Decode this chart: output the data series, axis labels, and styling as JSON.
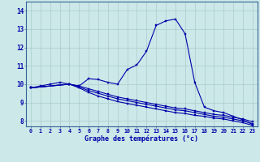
{
  "xlabel": "Graphe des températures (°c)",
  "background_color": "#cce8e8",
  "grid_color": "#aacccc",
  "line_color": "#0000aa",
  "spine_color": "#336699",
  "xlim": [
    -0.5,
    23.5
  ],
  "ylim": [
    7.7,
    14.5
  ],
  "yticks": [
    8,
    9,
    10,
    11,
    12,
    13,
    14
  ],
  "xticks": [
    0,
    1,
    2,
    3,
    4,
    5,
    6,
    7,
    8,
    9,
    10,
    11,
    12,
    13,
    14,
    15,
    16,
    17,
    18,
    19,
    20,
    21,
    22,
    23
  ],
  "line1_x": [
    0,
    1,
    2,
    3,
    4,
    5,
    6,
    7,
    8,
    9,
    10,
    11,
    12,
    13,
    14,
    15,
    16,
    17,
    18,
    19,
    20,
    21,
    22,
    23
  ],
  "line1_y": [
    9.8,
    9.9,
    10.0,
    10.1,
    10.0,
    9.9,
    10.3,
    10.25,
    10.1,
    10.0,
    10.8,
    11.05,
    11.8,
    13.2,
    13.45,
    13.55,
    12.75,
    10.1,
    8.75,
    8.55,
    8.45,
    8.25,
    8.05,
    7.8
  ],
  "line2_x": [
    0,
    4,
    5,
    6,
    7,
    8,
    9,
    10,
    11,
    12,
    13,
    14,
    15,
    16,
    17,
    18,
    19,
    20,
    21,
    22,
    23
  ],
  "line2_y": [
    9.8,
    10.0,
    9.9,
    9.75,
    9.6,
    9.45,
    9.3,
    9.2,
    9.1,
    9.0,
    8.9,
    8.8,
    8.7,
    8.65,
    8.55,
    8.45,
    8.35,
    8.3,
    8.2,
    8.1,
    7.95
  ],
  "line3_x": [
    0,
    4,
    5,
    6,
    7,
    8,
    9,
    10,
    11,
    12,
    13,
    14,
    15,
    16,
    17,
    18,
    19,
    20,
    21,
    22,
    23
  ],
  "line3_y": [
    9.8,
    10.0,
    9.85,
    9.65,
    9.5,
    9.35,
    9.2,
    9.1,
    9.0,
    8.9,
    8.8,
    8.7,
    8.6,
    8.55,
    8.45,
    8.35,
    8.25,
    8.2,
    8.1,
    8.0,
    7.85
  ],
  "line4_x": [
    0,
    4,
    5,
    6,
    7,
    8,
    9,
    10,
    11,
    12,
    13,
    14,
    15,
    16,
    17,
    18,
    19,
    20,
    21,
    22,
    23
  ],
  "line4_y": [
    9.8,
    10.0,
    9.8,
    9.55,
    9.35,
    9.2,
    9.05,
    8.95,
    8.85,
    8.75,
    8.65,
    8.55,
    8.45,
    8.4,
    8.3,
    8.25,
    8.15,
    8.1,
    8.0,
    7.9,
    7.75
  ]
}
